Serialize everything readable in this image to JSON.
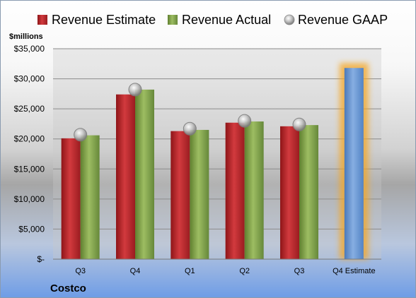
{
  "chart_data": {
    "type": "bar",
    "title": "",
    "unit_label": "$millions",
    "company": "Costco",
    "categories": [
      "Q3",
      "Q4",
      "Q1",
      "Q2",
      "Q3",
      "Q4 Estimate"
    ],
    "ylim": [
      0,
      35000
    ],
    "yticks": [
      {
        "value": 0,
        "label": "$-"
      },
      {
        "value": 5000,
        "label": "$5,000"
      },
      {
        "value": 10000,
        "label": "$10,000"
      },
      {
        "value": 15000,
        "label": "$15,000"
      },
      {
        "value": 20000,
        "label": "$20,000"
      },
      {
        "value": 25000,
        "label": "$25,000"
      },
      {
        "value": 30000,
        "label": "$30,000"
      },
      {
        "value": 35000,
        "label": "$35,000"
      }
    ],
    "grid": true,
    "legend_position": "top",
    "series": [
      {
        "name": "Revenue Estimate",
        "kind": "bar",
        "color": "#c0282d",
        "values": [
          20100,
          27400,
          21300,
          22700,
          22100,
          null
        ]
      },
      {
        "name": "Revenue Actual",
        "kind": "bar",
        "color": "#8aac52",
        "values": [
          20600,
          28200,
          21500,
          22900,
          22300,
          null
        ]
      },
      {
        "name": "Revenue GAAP",
        "kind": "marker",
        "color": "#b0b0b0",
        "values": [
          20700,
          28200,
          21700,
          23000,
          22400,
          null
        ]
      }
    ],
    "highlight": {
      "category_index": 5,
      "value": 31800,
      "color": "#6f9bd6",
      "glow": "#f5a623"
    }
  }
}
